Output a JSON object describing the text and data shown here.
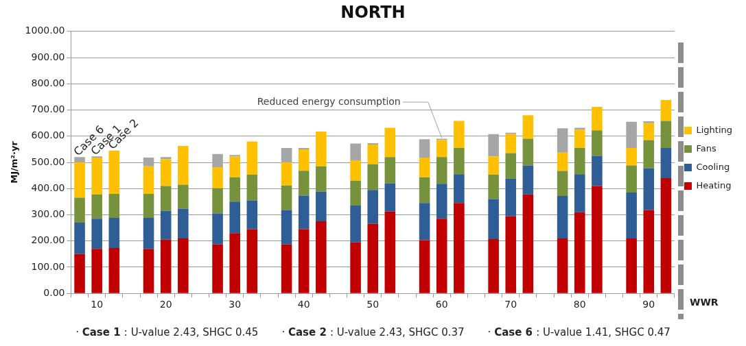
{
  "chart_data": {
    "type": "bar",
    "title": "NORTH",
    "ylabel": "MJ/m²·yr",
    "xlabel": "WWR",
    "stacked": true,
    "grid": "y",
    "legend": "right",
    "categories": [
      null,
      "10",
      null,
      null,
      null,
      "20",
      null,
      null,
      null,
      "30",
      null,
      null,
      null,
      "40",
      null,
      null,
      null,
      "50",
      null,
      null,
      null,
      "60",
      null,
      null,
      null,
      "70",
      null,
      null,
      null,
      "80",
      null,
      null,
      null,
      "90",
      null
    ],
    "ylim": [
      0,
      1000
    ],
    "yticks": [
      {
        "value": 0,
        "label": "0.00"
      },
      {
        "value": 100,
        "label": "100.00"
      },
      {
        "value": 200,
        "label": "200.00"
      },
      {
        "value": 300,
        "label": "300.00"
      },
      {
        "value": 400,
        "label": "400.00"
      },
      {
        "value": 500,
        "label": "500.00"
      },
      {
        "value": 600,
        "label": "600.00"
      },
      {
        "value": 700,
        "label": "700.00"
      },
      {
        "value": 800,
        "label": "800.00"
      },
      {
        "value": 900,
        "label": "900.00"
      },
      {
        "value": 1000,
        "label": "1000.00"
      }
    ],
    "series": [
      {
        "name": "Heating",
        "color": "#c00000",
        "values": [
          150,
          170,
          173,
          null,
          170,
          205,
          210,
          null,
          187,
          230,
          245,
          null,
          187,
          245,
          275,
          null,
          195,
          265,
          313,
          null,
          203,
          285,
          345,
          null,
          207,
          295,
          378,
          null,
          210,
          310,
          410,
          null,
          210,
          318,
          440
        ]
      },
      {
        "name": "Cooling",
        "color": "#2f5d95",
        "values": [
          120,
          115,
          115,
          null,
          118,
          110,
          113,
          null,
          118,
          120,
          110,
          null,
          131,
          128,
          113,
          null,
          140,
          130,
          107,
          null,
          142,
          133,
          110,
          null,
          153,
          143,
          110,
          null,
          162,
          145,
          115,
          null,
          175,
          160,
          115
        ]
      },
      {
        "name": "Fans",
        "color": "#76923c",
        "values": [
          95,
          93,
          92,
          null,
          92,
          95,
          92,
          null,
          97,
          93,
          98,
          null,
          94,
          95,
          97,
          null,
          95,
          98,
          100,
          null,
          98,
          102,
          100,
          null,
          93,
          97,
          102,
          null,
          95,
          100,
          97,
          null,
          103,
          107,
          103
        ]
      },
      {
        "name": "Lighting",
        "color": "#ffc000",
        "values": [
          135,
          140,
          165,
          null,
          105,
          102,
          148,
          null,
          80,
          79,
          127,
          null,
          88,
          82,
          133,
          null,
          78,
          75,
          112,
          null,
          75,
          65,
          103,
          null,
          70,
          73,
          90,
          null,
          70,
          70,
          90,
          null,
          67,
          65,
          80
        ]
      },
      {
        "color": "#a6a6a6",
        "values": [
          20,
          5,
          null,
          null,
          33,
          8,
          null,
          null,
          50,
          6,
          null,
          null,
          55,
          5,
          null,
          null,
          64,
          5,
          null,
          null,
          70,
          5,
          null,
          null,
          85,
          5,
          null,
          null,
          93,
          7,
          null,
          null,
          100,
          7,
          null
        ]
      }
    ],
    "annotations": [
      "Case 6",
      "Case 1",
      "Case 2",
      {
        "text": "Reduced energy consumption",
        "x": "60",
        "y": 588
      },
      "· Case 1 : U-value 2.43, SHGC 0.45",
      "· Case 2 : U-value 2.43, SHGC 0.37",
      "· Case 6 : U-value 1.41, SHGC 0.47"
    ]
  }
}
